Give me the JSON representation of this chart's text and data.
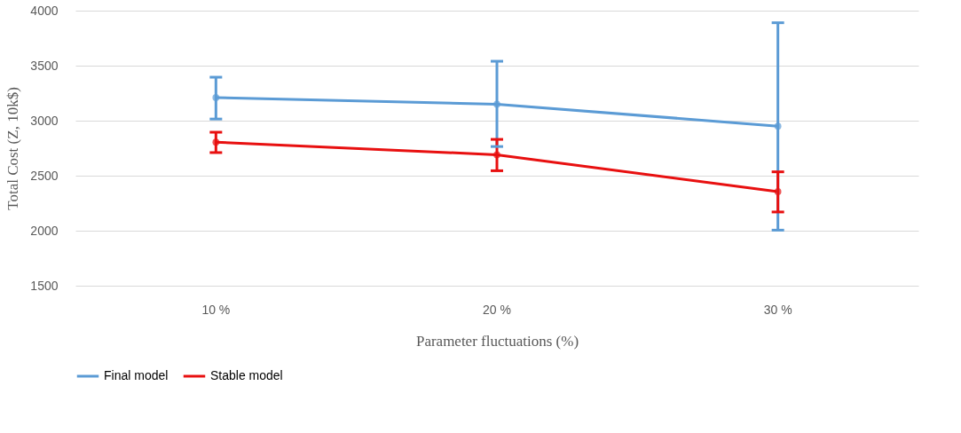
{
  "chart_data": {
    "type": "line",
    "xlabel": "Parameter fluctuations (%)",
    "ylabel": "Total Cost (Z, 10k$)",
    "categories": [
      "10 %",
      "20 %",
      "30 %"
    ],
    "series": [
      {
        "name": "Final model",
        "color": "#5b9bd5",
        "values": [
          3210,
          3150,
          2950
        ],
        "errors": [
          [
            3015,
            3395
          ],
          [
            2765,
            3540
          ],
          [
            2005,
            3890
          ]
        ]
      },
      {
        "name": "Stable model",
        "color": "#e81010",
        "values": [
          2805,
          2690,
          2355
        ],
        "errors": [
          [
            2710,
            2895
          ],
          [
            2545,
            2830
          ],
          [
            2170,
            2535
          ]
        ]
      }
    ],
    "ylim": [
      1500,
      4000
    ],
    "yticks": [
      1500,
      2000,
      2500,
      3000,
      3500,
      4000
    ],
    "grid": "y",
    "legend": "bottom",
    "marker": "circle",
    "line_style": "solid"
  }
}
